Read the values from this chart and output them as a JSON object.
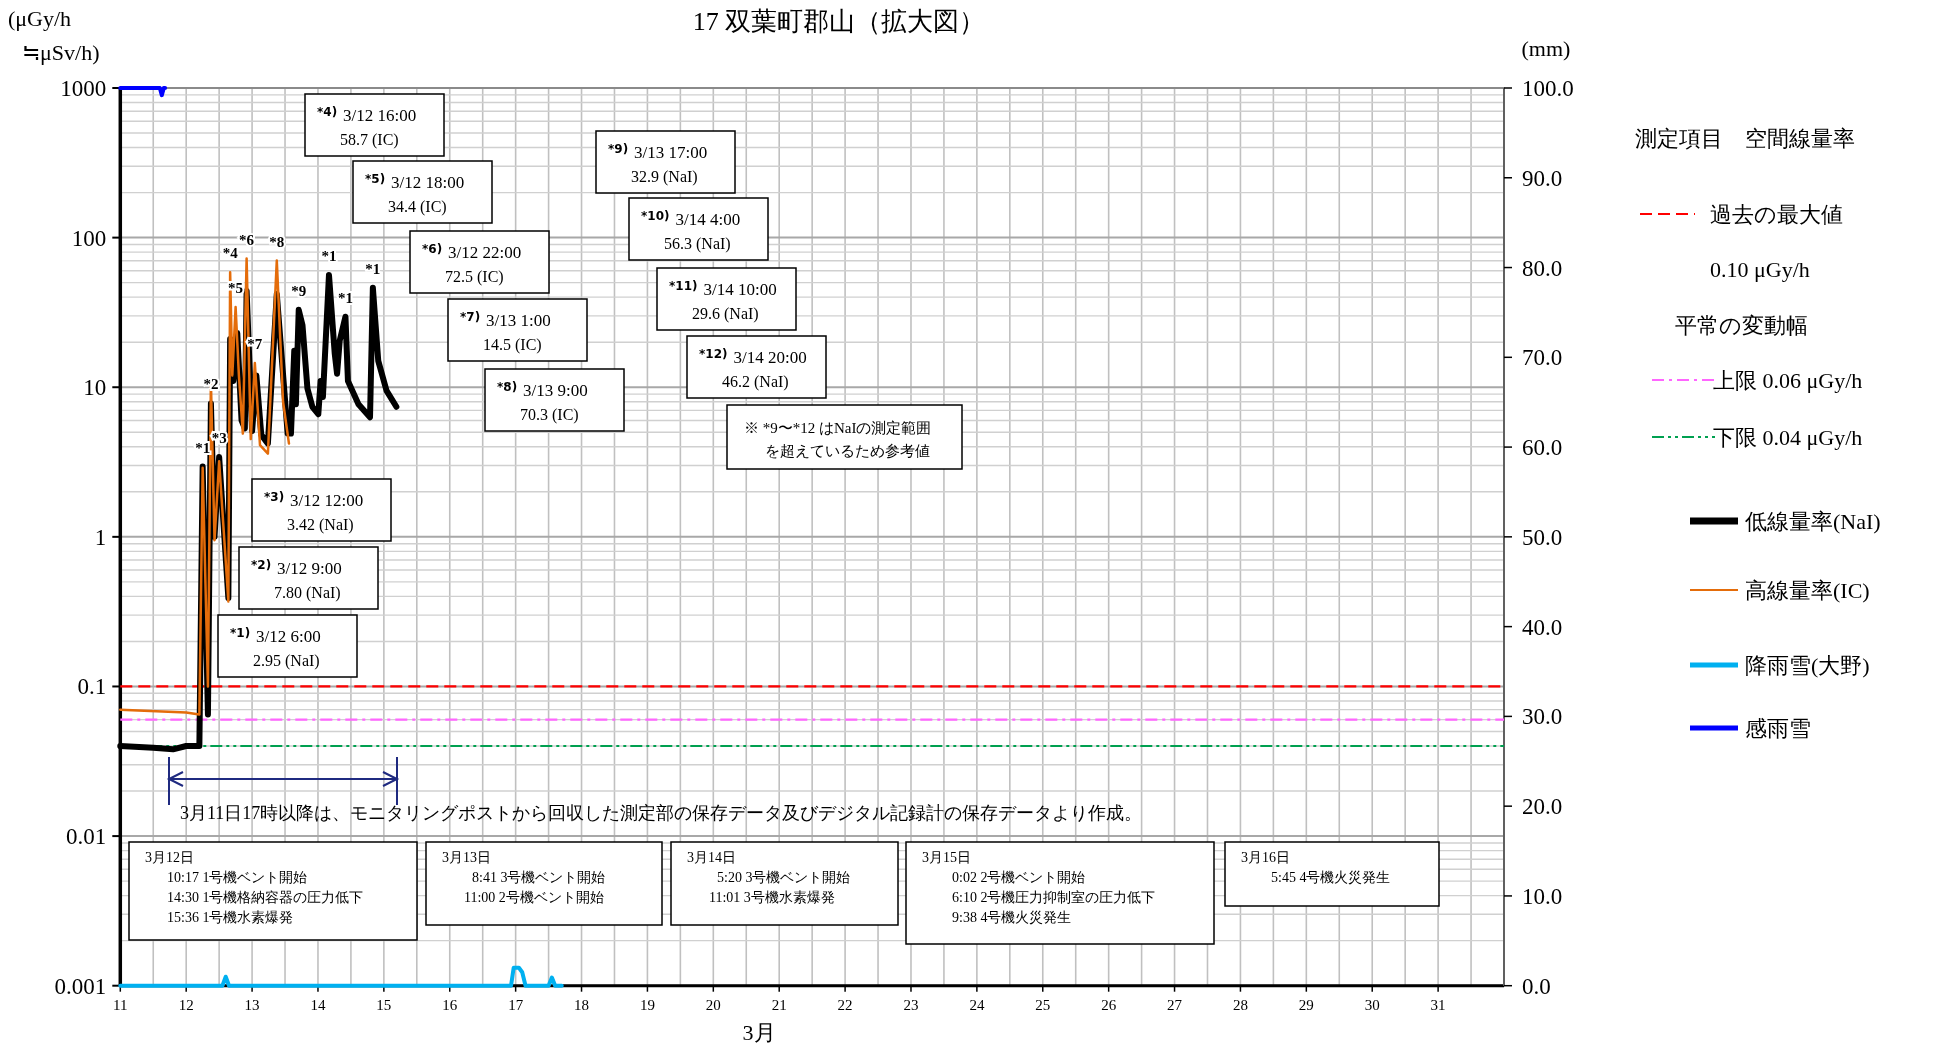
{
  "chart_data": {
    "type": "line",
    "title": "17 双葉町郡山（拡大図）",
    "xlabel": "3月",
    "ylabel": "(μGy/h\n≒μSv/h)",
    "y2label": "(mm)",
    "legend_title": "測定項目　空間線量率",
    "log": "y",
    "grid": true,
    "legend": "right",
    "xlim": [
      11,
      32
    ],
    "xticks": [
      11,
      12,
      13,
      14,
      15,
      16,
      17,
      18,
      19,
      20,
      21,
      22,
      23,
      24,
      25,
      26,
      27,
      28,
      29,
      30,
      31
    ],
    "ylim": [
      0.001,
      1000
    ],
    "yticks": [
      0.001,
      0.01,
      0.1,
      1,
      10,
      100,
      1000
    ],
    "y2lim": [
      0,
      100
    ],
    "y2ticks": [
      {
        "value": 0,
        "label": "0.0"
      },
      {
        "value": 10,
        "label": "10.0"
      },
      {
        "value": 20,
        "label": "20.0"
      },
      {
        "value": 30,
        "label": "30.0"
      },
      {
        "value": 40,
        "label": "40.0"
      },
      {
        "value": 50,
        "label": "50.0"
      },
      {
        "value": 60,
        "label": "60.0"
      },
      {
        "value": 70,
        "label": "70.0"
      },
      {
        "value": 80,
        "label": "80.0"
      },
      {
        "value": 90,
        "label": "90.0"
      },
      {
        "value": 100,
        "label": "100.0"
      }
    ],
    "series": [
      {
        "name": "低線量率(NaI)",
        "color": "#000000",
        "x": [
          11.0,
          11.5,
          11.8,
          12.0,
          12.2,
          12.25,
          12.33,
          12.375,
          12.43,
          12.5,
          12.64,
          12.667,
          12.715,
          12.775,
          12.84,
          12.89,
          12.917,
          13.0,
          13.065,
          13.14,
          13.24,
          13.375,
          13.54,
          13.59,
          13.64,
          13.665,
          13.708,
          13.765,
          13.84,
          13.915,
          14.005,
          14.04,
          14.075,
          14.167,
          14.255,
          14.29,
          14.33,
          14.417,
          14.455,
          14.615,
          14.79,
          14.833,
          14.915,
          15.04,
          15.19
        ],
        "values": [
          0.04,
          0.039,
          0.038,
          0.04,
          0.04,
          2.95,
          0.065,
          7.8,
          1.0,
          3.42,
          0.39,
          21,
          11,
          23,
          6.0,
          5.3,
          44,
          5.1,
          12,
          4.8,
          4.2,
          42,
          4.9,
          4.9,
          17.5,
          7.7,
          32.9,
          26,
          9.8,
          7.4,
          6.6,
          11,
          8.6,
          56.3,
          16.7,
          12.3,
          20.5,
          29.6,
          11,
          7.7,
          6.3,
          46.2,
          15,
          9.5,
          7.4
        ]
      },
      {
        "name": "高線量率(IC)",
        "color": "#e46c0a",
        "x": [
          11.0,
          12.0,
          12.2,
          12.25,
          12.33,
          12.375,
          12.43,
          12.5,
          12.64,
          12.667,
          12.7,
          12.75,
          12.8,
          12.86,
          12.917,
          12.98,
          13.042,
          13.12,
          13.24,
          13.375,
          13.47,
          13.56
        ],
        "values": [
          0.07,
          0.067,
          0.065,
          2.9,
          0.1,
          11,
          0.95,
          3.2,
          0.37,
          58.7,
          12,
          34.4,
          12,
          4.9,
          72.5,
          4.5,
          14.5,
          4.1,
          3.6,
          70.3,
          8,
          4.2
        ]
      },
      {
        "name": "降雨雪(大野)",
        "color": "#00b0f0",
        "axis": "y2",
        "x": [
          11,
          12.55,
          12.6,
          12.65,
          16.93,
          16.97,
          17.05,
          17.1,
          17.15,
          17.5,
          17.55,
          17.6,
          17.7
        ],
        "values": [
          0,
          0,
          1,
          0,
          0,
          2,
          2,
          1.5,
          0,
          0,
          0.9,
          0,
          0
        ]
      },
      {
        "name": "感雨雪",
        "color": "#0000ff",
        "axis": "y2",
        "x": [
          11,
          11.6,
          11.63,
          11.66,
          11.68
        ],
        "values": [
          100,
          100,
          99.2,
          100,
          100
        ]
      }
    ],
    "ref_lines": [
      {
        "axis": "y",
        "value": 0.1,
        "label": "過去の最大値\n0.10 μGy/h",
        "color": "#ff0000",
        "line_style": "dashed"
      },
      {
        "axis": "y",
        "value": 0.06,
        "label": "上限 0.06 μGy/h",
        "color": "#ff66ff",
        "line_style": "dashdot"
      },
      {
        "axis": "y",
        "value": 0.04,
        "label": "下限 0.04 μGy/h",
        "color": "#00a050",
        "line_style": "dashdotdot"
      }
    ],
    "annotations": [
      {
        "text": "*1",
        "x": 12.25,
        "y": 2.95
      },
      {
        "text": "*2",
        "x": 12.375,
        "y": 7.8
      },
      {
        "text": "*3",
        "x": 12.5,
        "y": 3.42
      },
      {
        "text": "*4",
        "x": 12.667,
        "y": 58.7
      },
      {
        "text": "*5",
        "x": 12.75,
        "y": 34.4
      },
      {
        "text": "*6",
        "x": 12.917,
        "y": 72.5
      },
      {
        "text": "*7",
        "x": 13.042,
        "y": 14.5
      },
      {
        "text": "*8",
        "x": 13.375,
        "y": 70.3
      },
      {
        "text": "*9",
        "x": 13.708,
        "y": 32.9
      },
      {
        "text": "*1",
        "x": 14.167,
        "y": 56.3
      },
      {
        "text": "*1",
        "x": 14.417,
        "y": 29.6
      },
      {
        "text": "*1",
        "x": 14.833,
        "y": 46.2
      },
      "$^{*1)}$ 3/12 6:00\n2.95 (NaI)",
      "$^{*2)}$ 3/12 9:00\n7.80 (NaI)",
      "$^{*3)}$ 3/12 12:00\n3.42 (NaI)",
      "$^{*4)}$ 3/12 16:00\n58.7 (IC)",
      "$^{*5)}$ 3/12 18:00\n34.4 (IC)",
      "$^{*6)}$ 3/12 22:00\n72.5 (IC)",
      "$^{*7)}$ 3/13 1:00\n14.5 (IC)",
      "$^{*8)}$ 3/13 9:00\n70.3 (IC)",
      "$^{*9)}$ 3/13 17:00\n32.9 (NaI)",
      "$^{*10)}$ 3/14 4:00\n56.3 (NaI)",
      "$^{*11)}$ 3/14 10:00\n29.6 (NaI)",
      "$^{*12)}$ 3/14 20:00\n46.2 (NaI)",
      "※ *9〜*12 はNaIの測定範囲を超えているため参考値",
      "3月11日17時以降は、モニタリングポストから回収した測定部の保存データ及びデジタル記録計の保存データより作成。",
      "3月12日\n10:17 1号機ベント開始\n14:30 1号機格納容器の圧力低下\n15:36 1号機水素爆発",
      "3月13日\n8:41 3号機ベント開始\n11:00 2号機ベント開始",
      "3月14日\n5:20 3号機ベント開始\n11:01 3号機水素爆発",
      "3月15日\n0:02 2号機ベント開始\n6:10 2号機圧力抑制室の圧力低下\n9:38 4号機火災発生",
      "3月16日\n5:45 4号機火災発生",
      "平常の変動幅"
    ]
  }
}
